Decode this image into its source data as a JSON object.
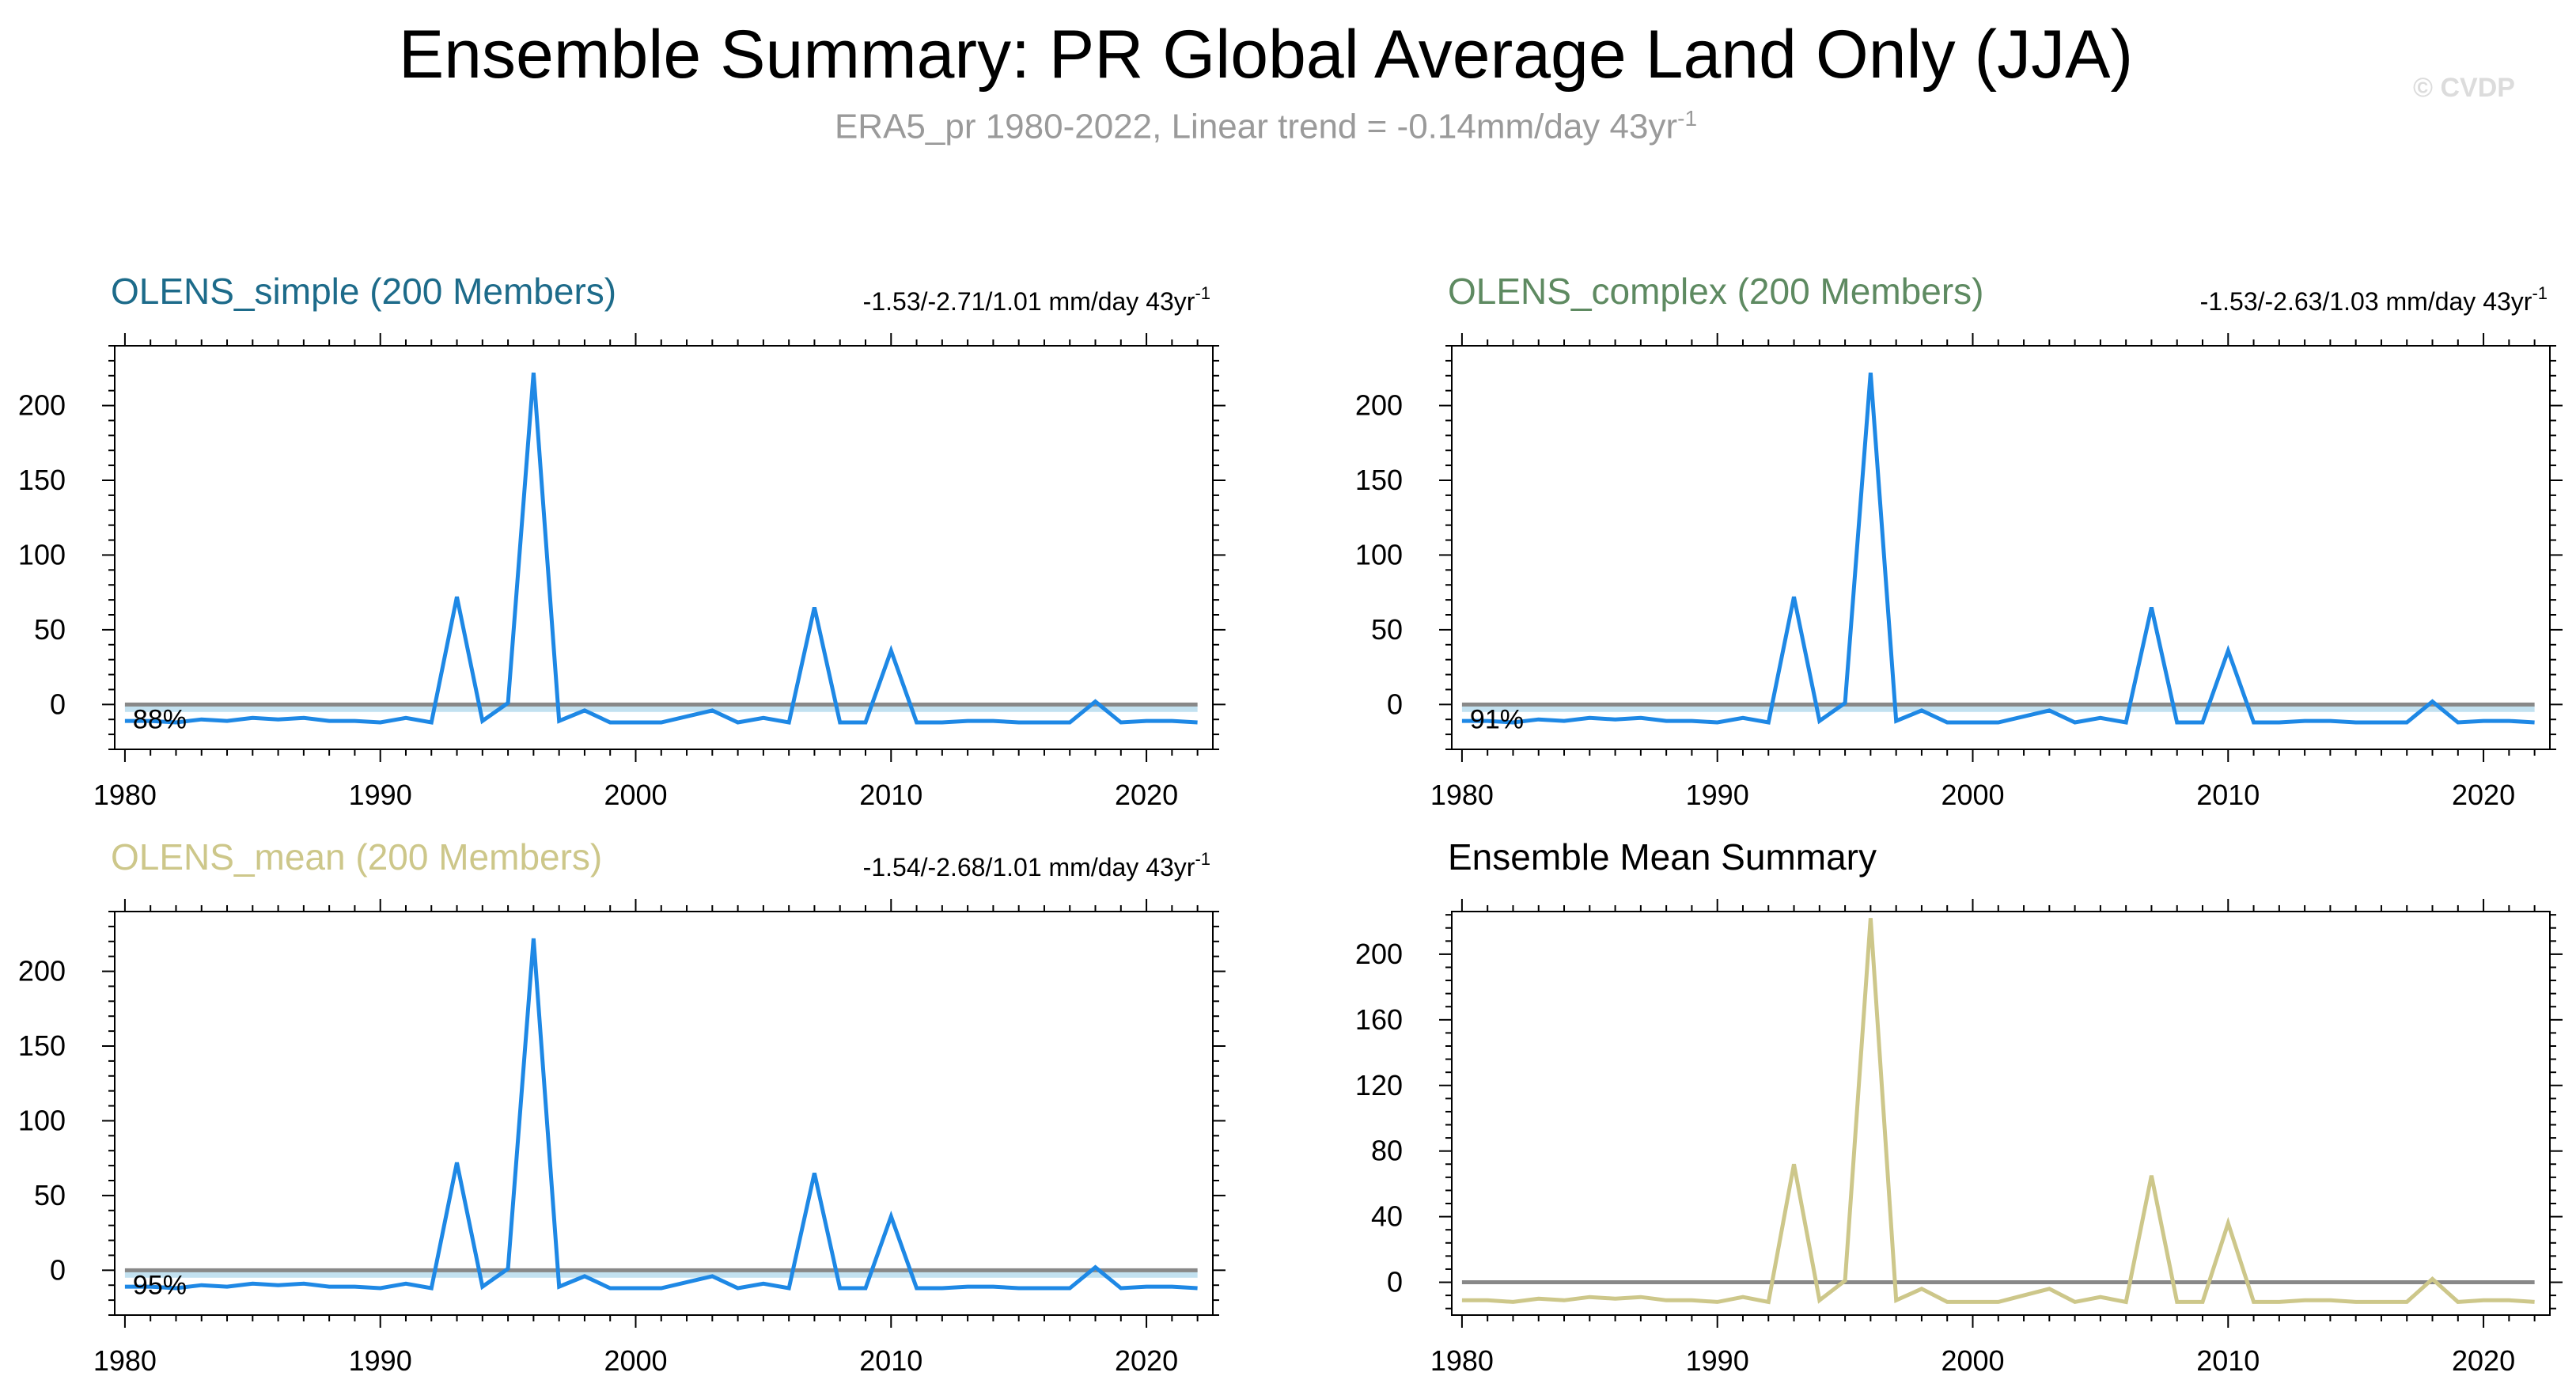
{
  "figure": {
    "title": "Ensemble Summary: PR Global Average Land Only (JJA)",
    "subtitle_main": "ERA5_pr 1980-2022, Linear trend = -0.14mm/day 43yr",
    "subtitle_sup": "-1",
    "watermark": "© CVDP"
  },
  "colors": {
    "obs_line": "#1e88e5",
    "zero_line": "#888888",
    "ensemble_band": "#a8d4ea",
    "ensemble_mean_line": "#cdc78a",
    "title_simple": "#1d6b8a",
    "title_complex": "#5e8a61",
    "title_mean": "#cdc78a",
    "title_summary": "#000000"
  },
  "chart_data": [
    {
      "type": "line",
      "panel": "OLENS_simple",
      "title": "OLENS_simple (200 Members)",
      "trend_label": "-1.53/-2.71/1.01 mm/day 43yr",
      "trend_sup": "-1",
      "percent_label": "88%",
      "xlim": [
        1979.6,
        2022.6
      ],
      "ylim": [
        -30,
        240
      ],
      "xticks": [
        1980,
        1990,
        2000,
        2010,
        2020
      ],
      "yticks": [
        0,
        50,
        100,
        150,
        200
      ],
      "ensemble_band": [
        -5,
        0
      ],
      "series": [
        {
          "name": "ERA5_pr",
          "color_key": "obs_line"
        }
      ]
    },
    {
      "type": "line",
      "panel": "OLENS_complex",
      "title": "OLENS_complex (200 Members)",
      "trend_label": "-1.53/-2.63/1.03 mm/day 43yr",
      "trend_sup": "-1",
      "percent_label": "91%",
      "xlim": [
        1979.6,
        2022.6
      ],
      "ylim": [
        -30,
        240
      ],
      "xticks": [
        1980,
        1990,
        2000,
        2010,
        2020
      ],
      "yticks": [
        0,
        50,
        100,
        150,
        200
      ],
      "ensemble_band": [
        -5,
        0
      ],
      "series": [
        {
          "name": "ERA5_pr",
          "color_key": "obs_line"
        }
      ]
    },
    {
      "type": "line",
      "panel": "OLENS_mean",
      "title": "OLENS_mean (200 Members)",
      "trend_label": "-1.54/-2.68/1.01 mm/day 43yr",
      "trend_sup": "-1",
      "percent_label": "95%",
      "xlim": [
        1979.6,
        2022.6
      ],
      "ylim": [
        -30,
        240
      ],
      "xticks": [
        1980,
        1990,
        2000,
        2010,
        2020
      ],
      "yticks": [
        0,
        50,
        100,
        150,
        200
      ],
      "ensemble_band": [
        -5,
        0
      ],
      "series": [
        {
          "name": "ERA5_pr",
          "color_key": "obs_line"
        }
      ]
    },
    {
      "type": "line",
      "panel": "Ensemble_Mean_Summary",
      "title": "Ensemble Mean Summary",
      "trend_label": "",
      "trend_sup": "",
      "percent_label": "",
      "xlim": [
        1979.6,
        2022.6
      ],
      "ylim": [
        -20,
        226
      ],
      "xticks": [
        1980,
        1990,
        2000,
        2010,
        2020
      ],
      "yticks": [
        0,
        40,
        80,
        120,
        160,
        200
      ],
      "ensemble_band": null,
      "series": [
        {
          "name": "Ensemble Mean",
          "color_key": "ensemble_mean_line"
        }
      ]
    }
  ],
  "series_x": [
    1980,
    1981,
    1982,
    1983,
    1984,
    1985,
    1986,
    1987,
    1988,
    1989,
    1990,
    1991,
    1992,
    1993,
    1994,
    1995,
    1996,
    1997,
    1998,
    1999,
    2000,
    2001,
    2002,
    2003,
    2004,
    2005,
    2006,
    2007,
    2008,
    2009,
    2010,
    2011,
    2012,
    2013,
    2014,
    2015,
    2016,
    2017,
    2018,
    2019,
    2020,
    2021,
    2022
  ],
  "series_y": [
    -11,
    -11,
    -12,
    -10,
    -11,
    -9,
    -10,
    -9,
    -11,
    -11,
    -12,
    -9,
    -12,
    72,
    -11,
    1,
    222,
    -11,
    -4,
    -12,
    -12,
    -12,
    -8,
    -4,
    -12,
    -9,
    -12,
    65,
    -12,
    -12,
    36,
    -12,
    -12,
    -11,
    -11,
    -12,
    -12,
    -12,
    2,
    -12,
    -11,
    -11,
    -12
  ]
}
